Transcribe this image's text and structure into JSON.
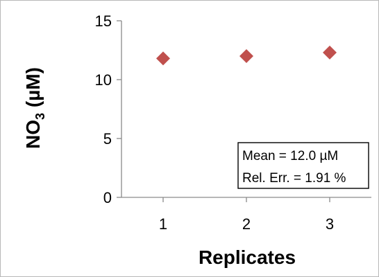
{
  "chart_data": {
    "type": "scatter",
    "title": "",
    "xlabel": "Replicates",
    "ylabel": {
      "prefix": "NO",
      "subscript": "3",
      "suffix": " (µM)"
    },
    "x_ticks": [
      "1",
      "2",
      "3"
    ],
    "xlim": [
      0.5,
      3.5
    ],
    "y_ticks": [
      "0",
      "5",
      "10",
      "15"
    ],
    "ylim": [
      0,
      15
    ],
    "grid": false,
    "legend": "none",
    "series": [
      {
        "x": [
          1,
          2,
          3
        ],
        "y": [
          11.8,
          12.0,
          12.3
        ],
        "marker": "diamond",
        "color": "#c0504d"
      }
    ],
    "annotation": {
      "placement": "bottom-right",
      "lines": [
        "Mean = 12.0 µM",
        "Rel. Err. = 1.91 %"
      ]
    }
  }
}
